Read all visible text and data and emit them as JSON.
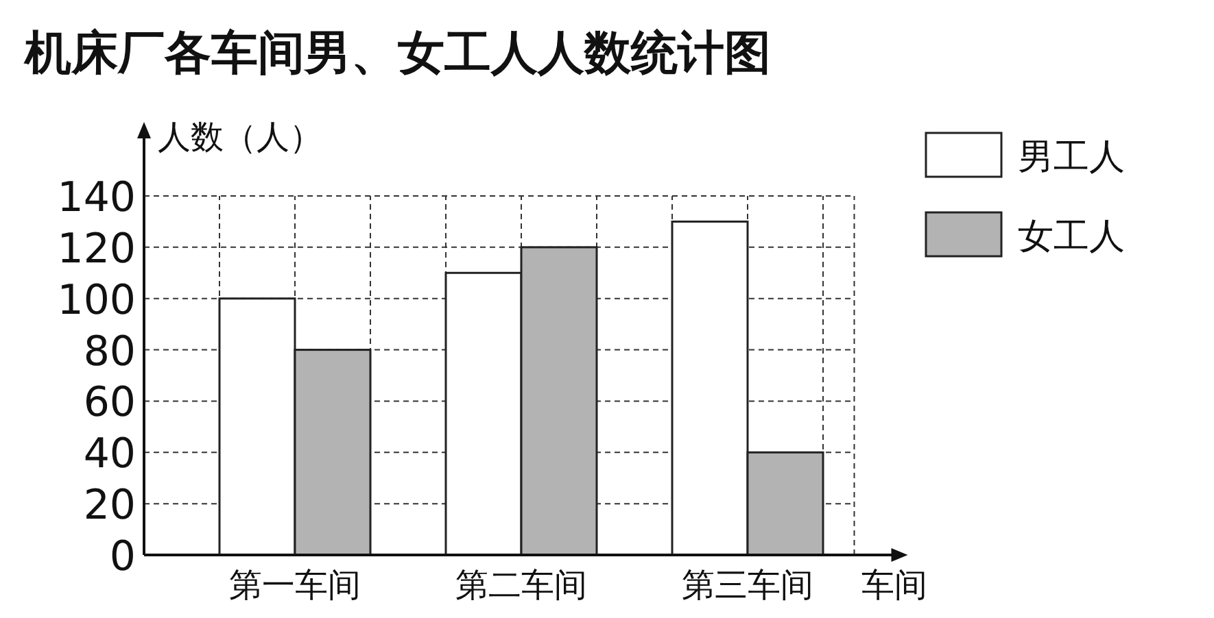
{
  "chart_data": {
    "type": "bar",
    "title": "机床厂各车间男、女工人人数统计图",
    "xlabel": "车间",
    "ylabel": "人数（人）",
    "categories": [
      "第一车间",
      "第二车间",
      "第三车间"
    ],
    "series": [
      {
        "name": "男工人",
        "color": "#ffffff",
        "values": [
          100,
          110,
          130
        ]
      },
      {
        "name": "女工人",
        "color": "#b3b3b3",
        "values": [
          80,
          120,
          40
        ]
      }
    ],
    "ylim": [
      0,
      140
    ],
    "yticks": [
      0,
      20,
      40,
      60,
      80,
      100,
      120,
      140
    ],
    "grid": true,
    "legend": "top right"
  }
}
